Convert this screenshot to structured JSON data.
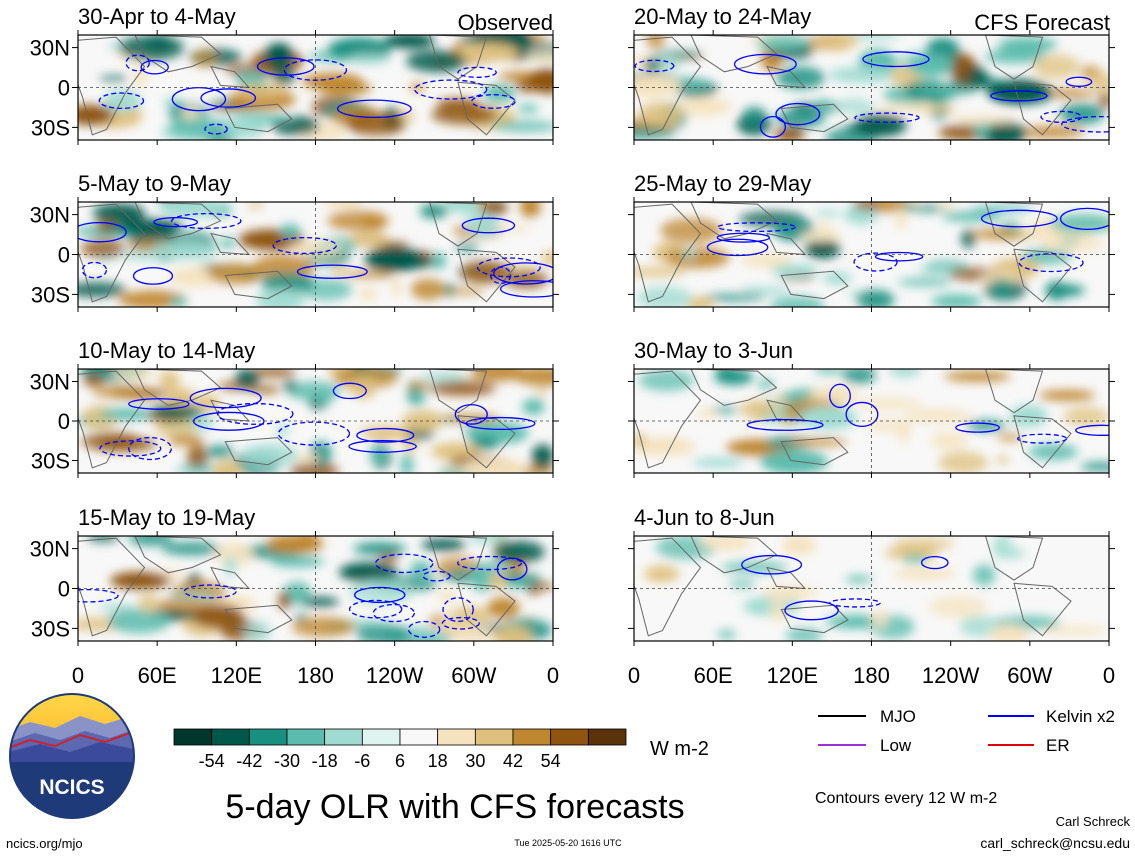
{
  "chart_data": {
    "type": "heatmap",
    "title": "5-day OLR with CFS forecasts",
    "units": "W m-2",
    "contour_note": "Contours every 12 W m-2",
    "column_labels": {
      "observed": "Observed",
      "forecast": "CFS Forecast"
    },
    "y_ticks": [
      "30N",
      "0",
      "30S"
    ],
    "x_ticks": [
      "0",
      "60E",
      "120E",
      "180",
      "120W",
      "60W",
      "0"
    ],
    "colorbar": {
      "labels": [
        "-54",
        "-42",
        "-30",
        "-18",
        "-6",
        "6",
        "18",
        "30",
        "42",
        "54"
      ],
      "colors": [
        "#00362c",
        "#00584a",
        "#198f80",
        "#5bbcad",
        "#a0dbd1",
        "#dff3ef",
        "#f8f8f8",
        "#f5e3bf",
        "#dfc17f",
        "#bf8730",
        "#8e5410",
        "#5a330a"
      ]
    },
    "legend": [
      {
        "label": "MJO",
        "color": "#000000"
      },
      {
        "label": "Kelvin x2",
        "color": "#0000ff"
      },
      {
        "label": "Low",
        "color": "#9b30d9"
      },
      {
        "label": "ER",
        "color": "#e00000"
      }
    ],
    "panels": [
      {
        "period": "30-Apr to 4-May",
        "source": "observed"
      },
      {
        "period": "5-May to 9-May",
        "source": "observed"
      },
      {
        "period": "10-May to 14-May",
        "source": "observed"
      },
      {
        "period": "15-May to 19-May",
        "source": "observed"
      },
      {
        "period": "20-May to 24-May",
        "source": "forecast"
      },
      {
        "period": "25-May to 29-May",
        "source": "forecast"
      },
      {
        "period": "30-May to 3-Jun",
        "source": "forecast"
      },
      {
        "period": "4-Jun to 8-Jun",
        "source": "forecast"
      }
    ]
  },
  "logo": {
    "text": "NCICS"
  },
  "footer": {
    "url": "ncics.org/mjo",
    "timestamp": "Tue 2025-05-20 1616 UTC",
    "author": "Carl Schreck",
    "email": "carl_schreck@ncsu.edu"
  }
}
